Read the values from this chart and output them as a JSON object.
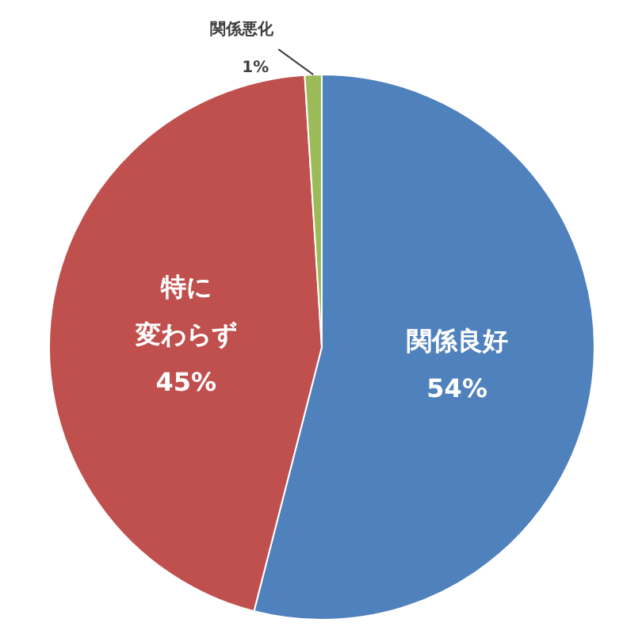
{
  "chart_data": {
    "type": "pie",
    "categories": [
      "関係良好",
      "特に変わらず",
      "関係悪化"
    ],
    "values": [
      54,
      45,
      1
    ],
    "colors": [
      "#4f81bd",
      "#c0504d",
      "#9bbb59"
    ],
    "value_labels": [
      "54%",
      "45%",
      "1%"
    ],
    "legend": false
  }
}
